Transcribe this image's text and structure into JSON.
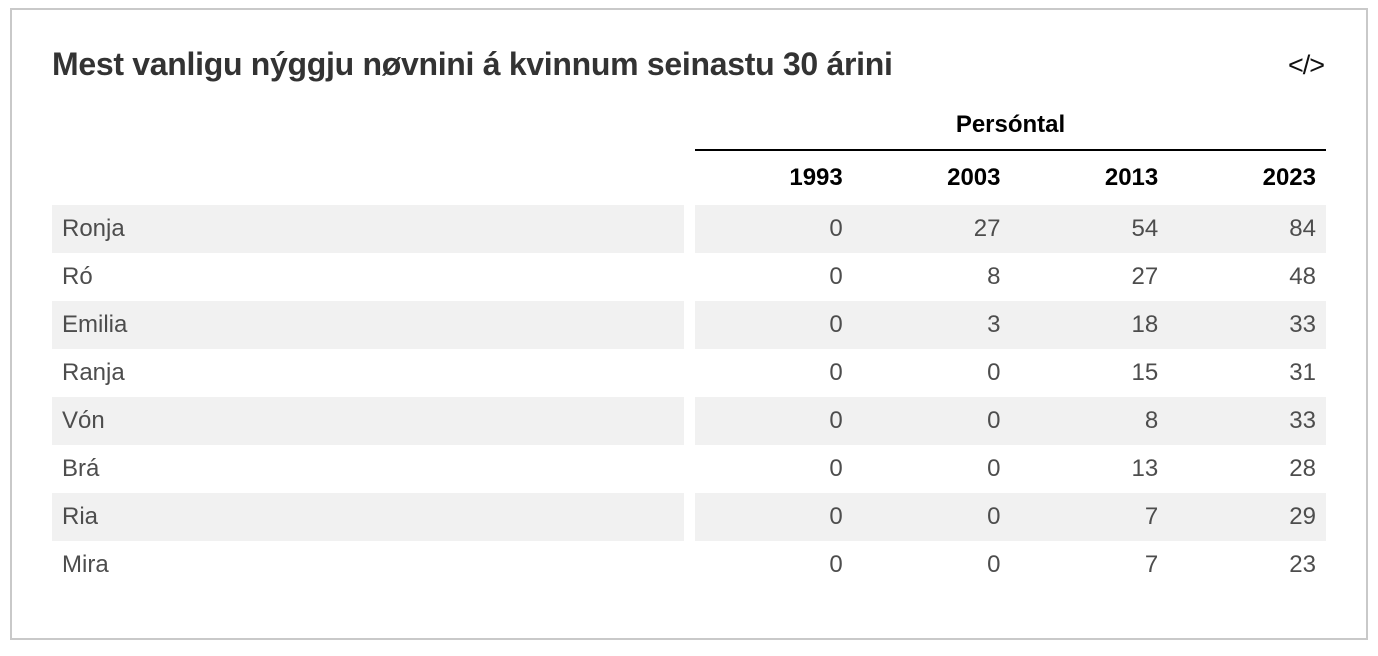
{
  "card": {
    "embed_icon": "</>"
  },
  "chart_data": {
    "type": "table",
    "title": "Mest vanligu nýggju nøvnini á kvinnum seinastu 30 árini",
    "column_group_label": "Persóntal",
    "categories": [
      "1993",
      "2003",
      "2013",
      "2023"
    ],
    "series": [
      {
        "name": "Ronja",
        "values": [
          0,
          27,
          54,
          84
        ]
      },
      {
        "name": "Ró",
        "values": [
          0,
          8,
          27,
          48
        ]
      },
      {
        "name": "Emilia",
        "values": [
          0,
          3,
          18,
          33
        ]
      },
      {
        "name": "Ranja",
        "values": [
          0,
          0,
          15,
          31
        ]
      },
      {
        "name": "Vón",
        "values": [
          0,
          0,
          8,
          33
        ]
      },
      {
        "name": "Brá",
        "values": [
          0,
          0,
          13,
          28
        ]
      },
      {
        "name": "Ria",
        "values": [
          0,
          0,
          7,
          29
        ]
      },
      {
        "name": "Mira",
        "values": [
          0,
          0,
          7,
          23
        ]
      }
    ],
    "layout": {
      "striped_rows": true,
      "value_alignment": "right",
      "group_header_underline": true
    }
  },
  "colors": {
    "stripe": "#f1f1f1",
    "cell_text": "#4d4d4d",
    "header_text": "#000000",
    "title_text": "#333333",
    "card_border": "#c9c9c9",
    "header_rule": "#000000"
  }
}
